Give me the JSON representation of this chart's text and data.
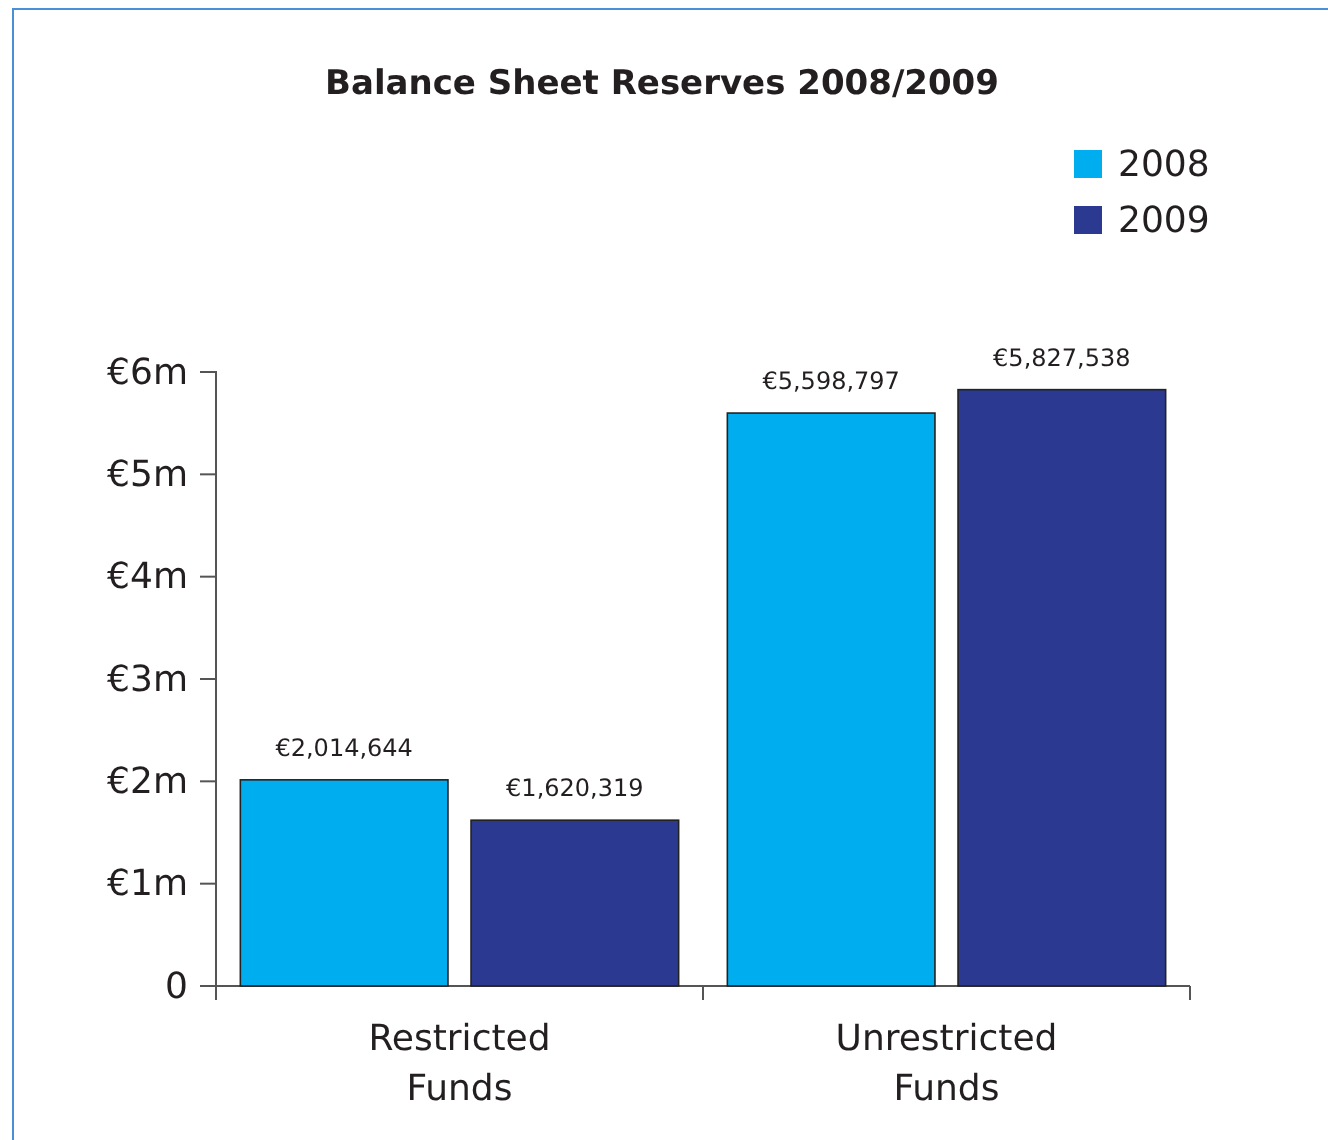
{
  "chart_data": {
    "type": "bar",
    "title": "Balance Sheet Reserves 2008/2009",
    "categories": [
      "Restricted Funds",
      "Unrestricted Funds"
    ],
    "series": [
      {
        "name": "2008",
        "color": "#00aeef",
        "values": [
          2014644,
          5598797
        ],
        "value_labels": [
          "€2,014,644",
          "€5,598,797"
        ]
      },
      {
        "name": "2009",
        "color": "#2b3990",
        "values": [
          1620319,
          5827538
        ],
        "value_labels": [
          "€1,620,319",
          "€5,827,538"
        ]
      }
    ],
    "ylim": [
      0,
      6000000
    ],
    "yticks": [
      0,
      {
        "value": 1000000,
        "label": "€1m"
      },
      {
        "value": 2000000,
        "label": "€2m"
      },
      {
        "value": 3000000,
        "label": "€3m"
      },
      {
        "value": 4000000,
        "label": "€4m"
      },
      {
        "value": 5000000,
        "label": "€5m"
      },
      {
        "value": 6000000,
        "label": "€6m"
      }
    ],
    "legend": "top right",
    "grid": false
  }
}
